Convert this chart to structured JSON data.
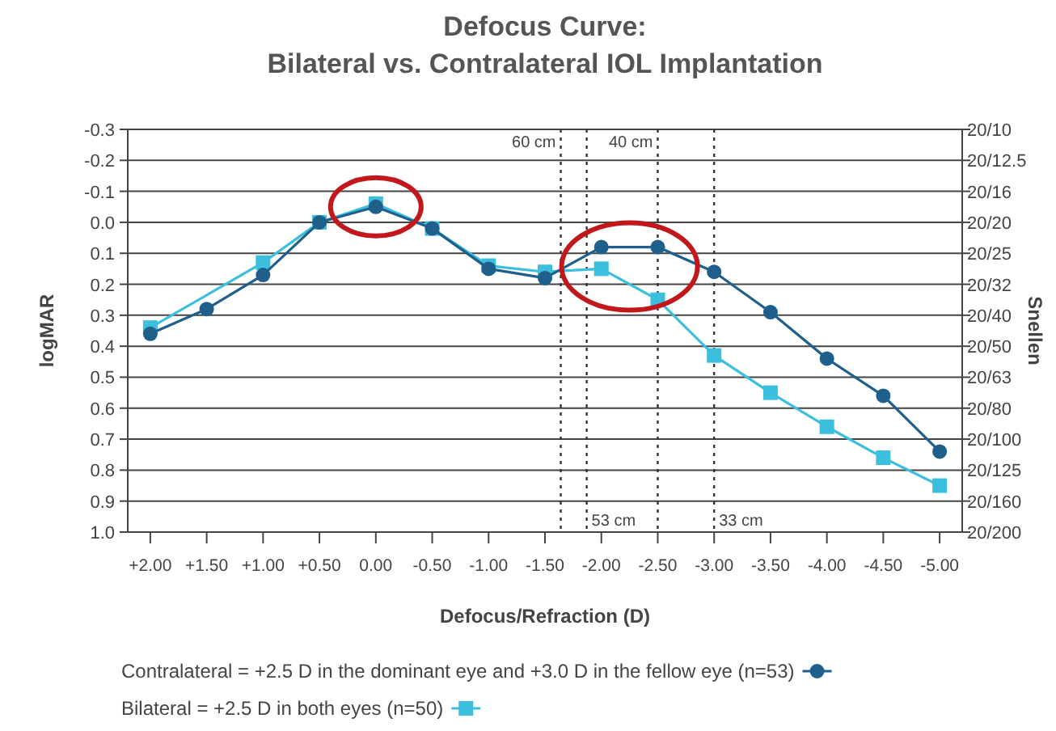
{
  "chart_data": {
    "type": "line",
    "title": "Defocus Curve:\nBilateral vs. Contralateral IOL Implantation",
    "xlabel": "Defocus/Refraction (D)",
    "ylabel": "logMAR",
    "y2label": "Snellen",
    "xlim": [
      2.2,
      -5.2
    ],
    "xticks": [
      {
        "value": 2,
        "label": "+2.00"
      },
      {
        "value": 1.5,
        "label": "+1.50"
      },
      {
        "value": 1,
        "label": "+1.00"
      },
      {
        "value": 0.5,
        "label": "+0.50"
      },
      {
        "value": 0,
        "label": "0.00"
      },
      {
        "value": -0.5,
        "label": "-0.50"
      },
      {
        "value": -1,
        "label": "-1.00"
      },
      {
        "value": -1.5,
        "label": "-1.50"
      },
      {
        "value": -2,
        "label": "-2.00"
      },
      {
        "value": -2.5,
        "label": "-2.50"
      },
      {
        "value": -3,
        "label": "-3.00"
      },
      {
        "value": -3.5,
        "label": "-3.50"
      },
      {
        "value": -4,
        "label": "-4.00"
      },
      {
        "value": -4.5,
        "label": "-4.50"
      },
      {
        "value": -5,
        "label": "-5.00"
      }
    ],
    "ylim": [
      1.0,
      -0.3
    ],
    "yticks": [
      -0.3,
      -0.2,
      -0.1,
      {
        "value": 0,
        "label": "0.0"
      },
      0.1,
      0.2,
      0.3,
      0.4,
      0.5,
      0.6,
      0.7,
      0.8,
      0.9,
      {
        "value": 1,
        "label": "1.0"
      }
    ],
    "annotations": [
      "20/10",
      "20/12.5",
      "20/16",
      "20/20",
      "20/25",
      "20/32",
      "20/40",
      "20/50",
      "20/63",
      "20/80",
      "20/100",
      "20/125",
      "20/160",
      "20/200"
    ],
    "grid": "y",
    "legend": "bottom",
    "line_style": "solid",
    "series": [
      {
        "name": "Contralateral = +2.5 D in the dominant eye and +3.0 D in the fellow eye (n=53)",
        "color": "#1f5f8b",
        "marker": "circle",
        "x": [
          2,
          1.5,
          1,
          0.5,
          0,
          -0.5,
          -1,
          -1.5,
          -2,
          -2.5,
          -3,
          -3.5,
          -4,
          -4.5,
          -5
        ],
        "values": [
          0.36,
          0.28,
          0.17,
          0.0,
          -0.05,
          0.02,
          0.15,
          0.18,
          0.08,
          0.08,
          0.16,
          0.29,
          0.44,
          0.56,
          0.74
        ]
      },
      {
        "name": "Bilateral = +2.5 D in both eyes (n=50)",
        "color": "#3bbfdc",
        "marker": "square",
        "x": [
          2,
          1,
          0.5,
          0,
          -0.5,
          -1,
          -1.5,
          -2,
          -2.5,
          -3,
          -3.5,
          -4,
          -4.5,
          -5
        ],
        "values": [
          0.34,
          0.13,
          0.0,
          -0.06,
          0.02,
          0.14,
          0.16,
          0.15,
          0.25,
          0.43,
          0.55,
          0.66,
          0.76,
          0.85
        ]
      }
    ],
    "ref_lines": [
      {
        "axis": "x",
        "value": -1.64,
        "label": "60 cm",
        "line_style": "dotted",
        "color": "#333333"
      },
      {
        "axis": "x",
        "value": -1.87,
        "label": "53 cm",
        "line_style": "dotted",
        "color": "#333333"
      },
      {
        "axis": "x",
        "value": -2.5,
        "label": "40 cm",
        "line_style": "dotted",
        "color": "#333333"
      },
      {
        "axis": "x",
        "value": -3.0,
        "label": "33 cm",
        "line_style": "dotted",
        "color": "#333333"
      }
    ]
  }
}
